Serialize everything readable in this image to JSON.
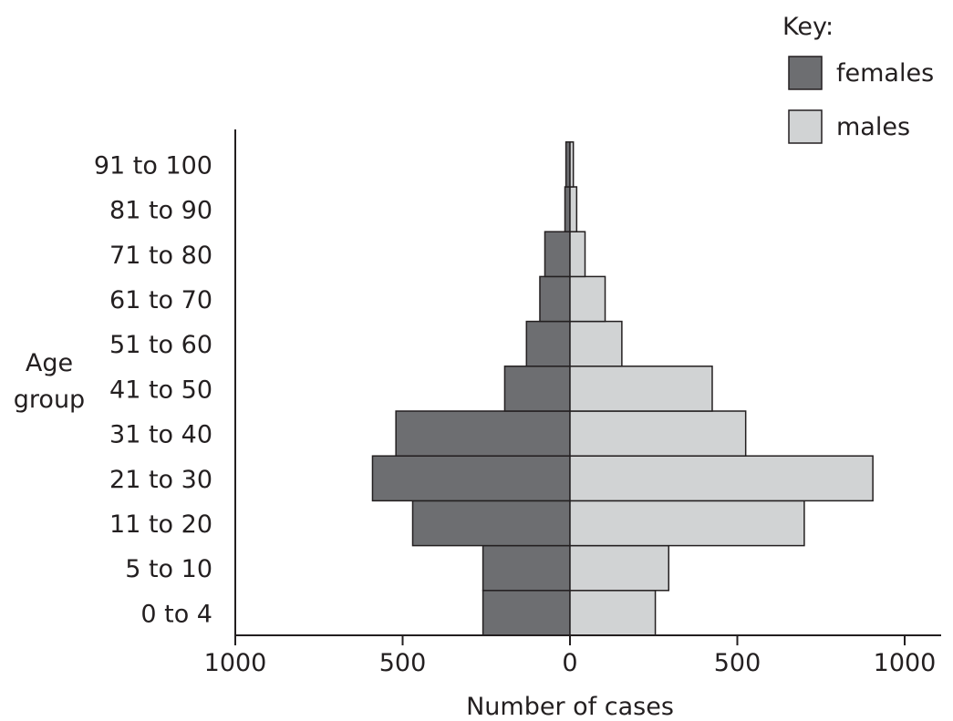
{
  "chart_data": {
    "type": "bar",
    "orientation": "horizontal-population-pyramid",
    "categories": [
      "0 to 4",
      "5 to 10",
      "11 to 20",
      "21 to 30",
      "31 to 40",
      "41 to 50",
      "51 to 60",
      "61 to 70",
      "71 to 80",
      "81 to 90",
      "91 to 100"
    ],
    "series": [
      {
        "name": "females",
        "values": [
          260,
          260,
          470,
          590,
          520,
          195,
          130,
          90,
          75,
          15,
          12
        ],
        "color": "#6d6e71",
        "side": "left"
      },
      {
        "name": "males",
        "values": [
          255,
          295,
          700,
          905,
          525,
          425,
          155,
          105,
          45,
          20,
          10
        ],
        "color": "#d1d3d4",
        "side": "right"
      }
    ],
    "xlabel": "Number of cases",
    "ylabel_lines": [
      "Age",
      "group"
    ],
    "xlim": [
      -1000,
      1000
    ],
    "x_ticks": [
      -1000,
      -500,
      0,
      500,
      1000
    ],
    "x_tick_labels": [
      "1000",
      "500",
      "0",
      "500",
      "1000"
    ],
    "legend": {
      "title": "Key:",
      "position": "top-right"
    },
    "grid": false
  }
}
